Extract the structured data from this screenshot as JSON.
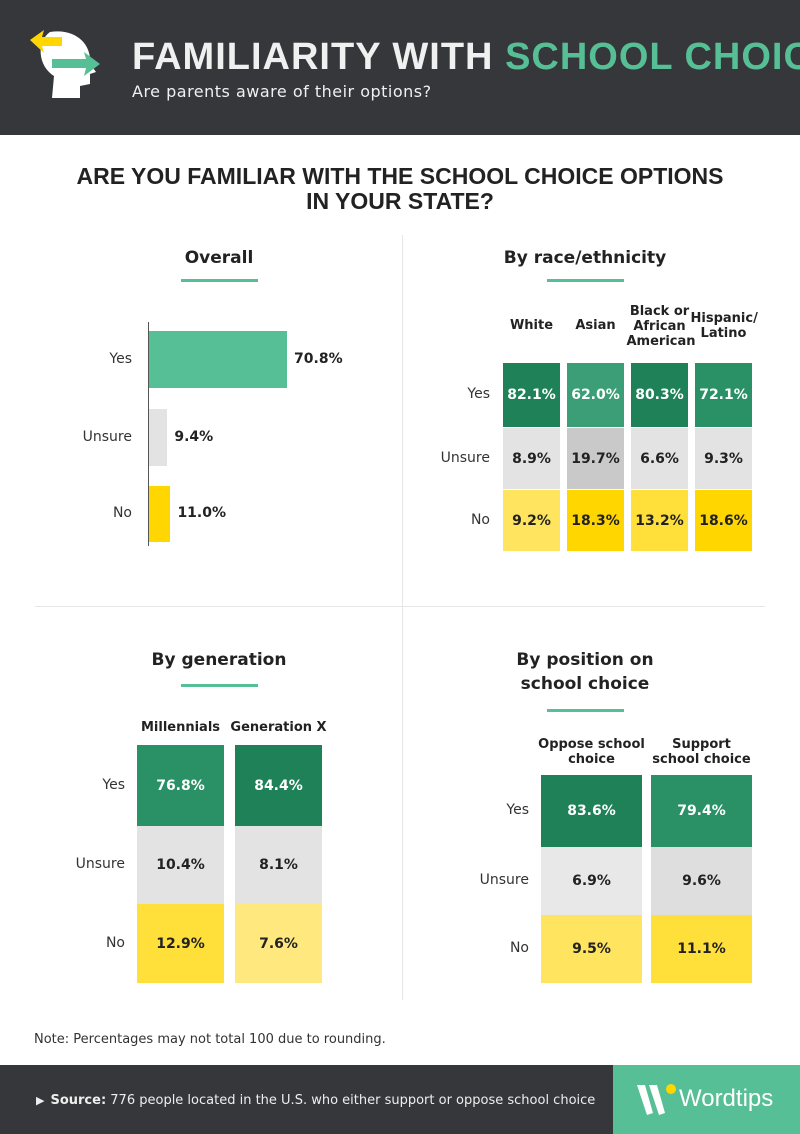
{
  "header": {
    "title_part1": "FAMILIARITY WITH",
    "title_part2": "SCHOOL CHOICE",
    "subtitle": "Are parents aware of their options?"
  },
  "main_title_line1": "ARE YOU FAMILIAR WITH THE SCHOOL CHOICE OPTIONS",
  "main_title_line2": "IN YOUR STATE?",
  "colors": {
    "header_bg": "#36373b",
    "accent": "#56bf95"
  },
  "chart_data": [
    {
      "type": "bar",
      "orientation": "horizontal",
      "title": "Overall",
      "categories": [
        "Yes",
        "Unsure",
        "No"
      ],
      "values": [
        70.8,
        9.4,
        11.0
      ],
      "labels": [
        "70.8%",
        "9.4%",
        "11.0%"
      ],
      "colors": [
        "#56bf95",
        "#e3e3e3",
        "#ffd600"
      ]
    },
    {
      "type": "heatmap",
      "title": "By race/ethnicity",
      "columns": [
        "White",
        "Asian",
        "Black or African American",
        "Hispanic/ Latino"
      ],
      "rows": [
        "Yes",
        "Unsure",
        "No"
      ],
      "values": [
        [
          82.1,
          62.0,
          80.3,
          72.1
        ],
        [
          8.9,
          19.7,
          6.6,
          9.3
        ],
        [
          9.2,
          18.3,
          13.2,
          18.6
        ]
      ],
      "labels": [
        [
          "82.1%",
          "62.0%",
          "80.3%",
          "72.1%"
        ],
        [
          "8.9%",
          "19.7%",
          "6.6%",
          "9.3%"
        ],
        [
          "9.2%",
          "18.3%",
          "13.2%",
          "18.6%"
        ]
      ],
      "colors": [
        [
          "#1e8157",
          "#3b9e76",
          "#1e8157",
          "#2a9166"
        ],
        [
          "#e3e3e3",
          "#c9c9c9",
          "#e3e3e3",
          "#e3e3e3"
        ],
        [
          "#ffe55f",
          "#ffd600",
          "#ffdf3a",
          "#ffd600"
        ]
      ]
    },
    {
      "type": "heatmap",
      "title": "By generation",
      "columns": [
        "Millennials",
        "Generation X"
      ],
      "rows": [
        "Yes",
        "Unsure",
        "No"
      ],
      "values": [
        [
          76.8,
          84.4
        ],
        [
          10.4,
          8.1
        ],
        [
          12.9,
          7.6
        ]
      ],
      "labels": [
        [
          "76.8%",
          "84.4%"
        ],
        [
          "10.4%",
          "8.1%"
        ],
        [
          "12.9%",
          "7.6%"
        ]
      ],
      "colors": [
        [
          "#2a9166",
          "#1e8157"
        ],
        [
          "#e3e3e3",
          "#e3e3e3"
        ],
        [
          "#ffdf3a",
          "#ffe97f"
        ]
      ]
    },
    {
      "type": "heatmap",
      "title": "By position on school choice",
      "columns": [
        "Oppose school choice",
        "Support school choice"
      ],
      "rows": [
        "Yes",
        "Unsure",
        "No"
      ],
      "values": [
        [
          83.6,
          79.4
        ],
        [
          6.9,
          9.6
        ],
        [
          9.5,
          11.1
        ]
      ],
      "labels": [
        [
          "83.6%",
          "79.4%"
        ],
        [
          "6.9%",
          "9.6%"
        ],
        [
          "9.5%",
          "11.1%"
        ]
      ],
      "colors": [
        [
          "#1e8157",
          "#2a9166"
        ],
        [
          "#e8e8e8",
          "#dedede"
        ],
        [
          "#ffe55f",
          "#ffdf3a"
        ]
      ]
    }
  ],
  "note": "Note: Percentages may not total 100 due to rounding.",
  "footer": {
    "source_label": "Source:",
    "source_text": " 776 people located in the U.S. who either support or oppose school choice",
    "brand": "Wordtips"
  }
}
